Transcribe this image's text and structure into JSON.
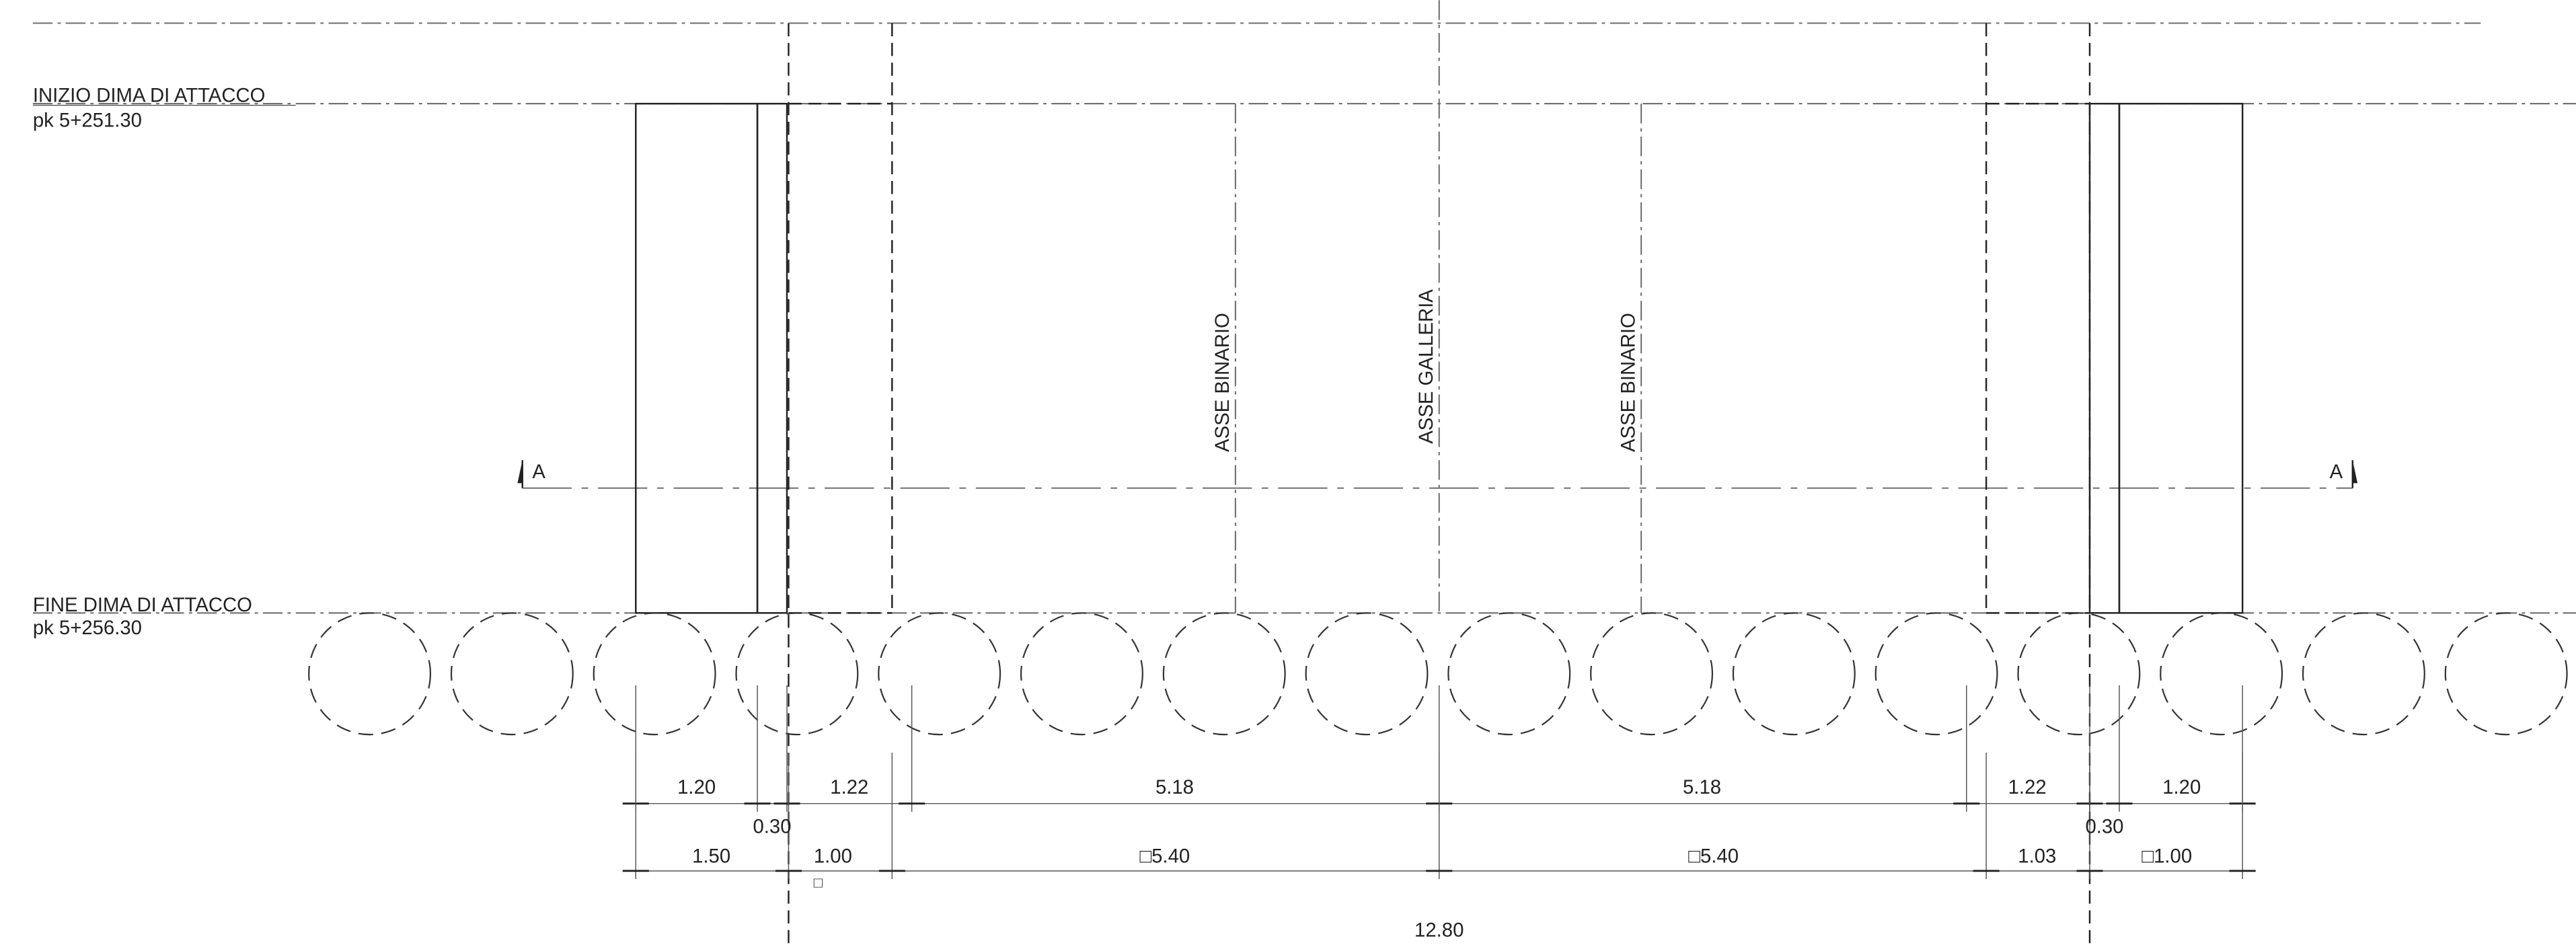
{
  "labels": {
    "start_title": "INIZIO DIMA DI ATTACCO",
    "start_pk": "pk 5+251.30",
    "end_title": "FINE DIMA DI ATTACCO",
    "end_pk": "pk 5+256.30"
  },
  "axes": {
    "track_left": "ASSE BINARIO",
    "tunnel": "ASSE GALLERIA",
    "track_right": "ASSE BINARIO"
  },
  "section": {
    "left": "A",
    "right": "A"
  },
  "dimensions": {
    "row1": [
      "1.20",
      "1.22",
      "5.18",
      "5.18",
      "1.22",
      "1.20"
    ],
    "offsets": [
      "0.30",
      "0.30"
    ],
    "row2": [
      "1.50",
      "1.00",
      "□5.40",
      "□5.40",
      "1.03",
      "□1.00"
    ],
    "marker": "□",
    "total": "12.80"
  }
}
